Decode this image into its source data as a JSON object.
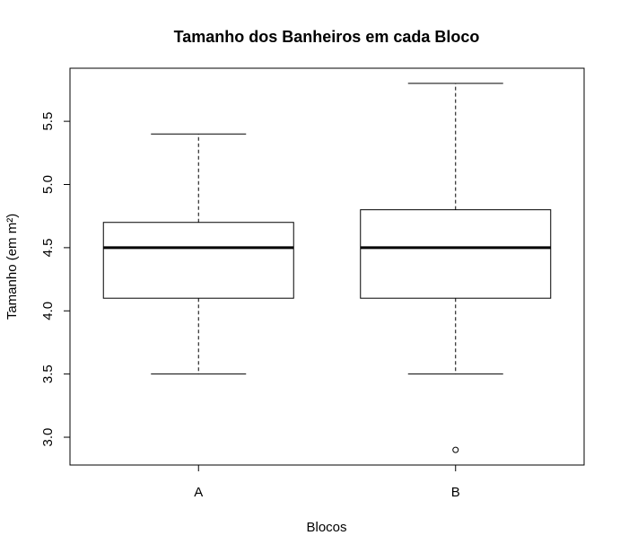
{
  "chart_data": {
    "type": "boxplot",
    "title": "Tamanho dos Banheiros em cada Bloco",
    "xlabel": "Blocos",
    "ylabel": "Tamanho (em m²)",
    "categories": [
      "A",
      "B"
    ],
    "series": [
      {
        "name": "A",
        "whisker_low": 3.5,
        "q1": 4.1,
        "median": 4.5,
        "q3": 4.7,
        "whisker_high": 5.4,
        "outliers": []
      },
      {
        "name": "B",
        "whisker_low": 3.5,
        "q1": 4.1,
        "median": 4.5,
        "q3": 4.8,
        "whisker_high": 5.8,
        "outliers": [
          2.9
        ]
      }
    ],
    "yticks": [
      3.0,
      3.5,
      4.0,
      4.5,
      5.0,
      5.5
    ],
    "ytick_labels": [
      "3.0",
      "3.5",
      "4.0",
      "4.5",
      "5.0",
      "5.5"
    ],
    "ylim": [
      2.78,
      5.92
    ],
    "grid": false,
    "legend": "none"
  }
}
